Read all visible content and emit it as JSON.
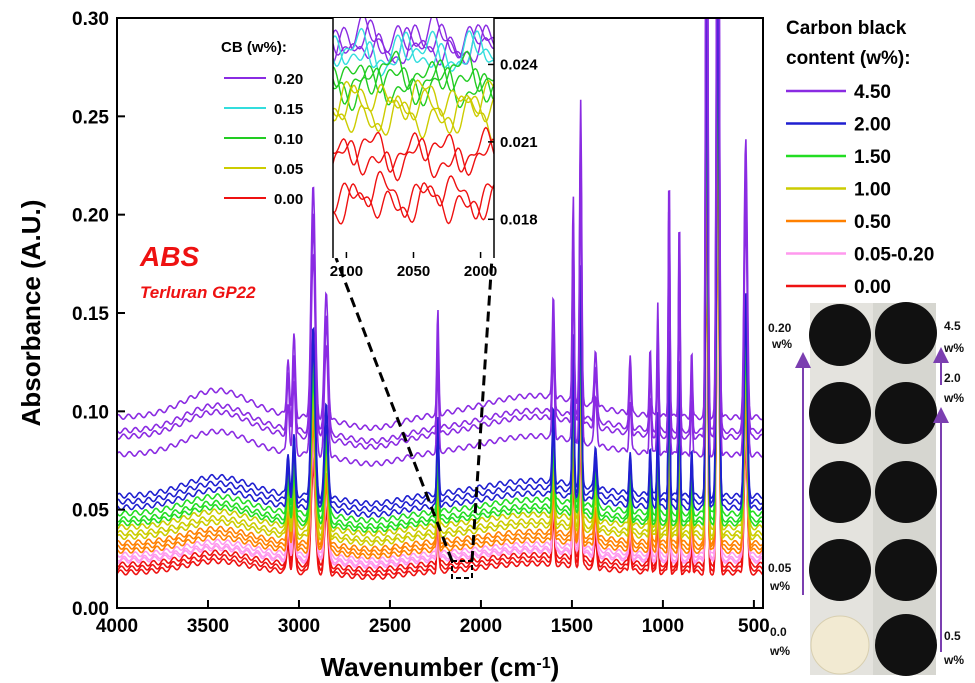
{
  "chart_data": {
    "type": "line",
    "xlabel": "Wavenumber (cm",
    "xlabel_sup": "-1",
    "xlabel_close": ")",
    "ylabel": "Absorbance (A.U.)",
    "xlim": [
      4000,
      450
    ],
    "ylim": [
      0,
      0.3
    ],
    "x_ticks": [
      4000,
      3500,
      3000,
      2500,
      2000,
      1500,
      1000,
      500
    ],
    "y_ticks": [
      "0.00",
      "0.05",
      "0.10",
      "0.15",
      "0.20",
      "0.25",
      "0.30"
    ],
    "y_tick_values": [
      0,
      0.05,
      0.1,
      0.15,
      0.2,
      0.25,
      0.3
    ],
    "annotation_title": "ABS",
    "annotation_subtitle": "Terluran GP22",
    "legend": {
      "title_line1": "Carbon black",
      "title_line2": "content (w%):",
      "entries": [
        {
          "label": "4.50",
          "color": "#8a2be2"
        },
        {
          "label": "2.00",
          "color": "#1f1fd0"
        },
        {
          "label": "1.50",
          "color": "#22dd22"
        },
        {
          "label": "1.00",
          "color": "#cccc00"
        },
        {
          "label": "0.50",
          "color": "#ff8000"
        },
        {
          "label": "0.05-0.20",
          "color": "#ff99ee"
        },
        {
          "label": "0.00",
          "color": "#ee1111"
        }
      ]
    },
    "series": [
      {
        "name": "4.50",
        "color": "#8a2be2",
        "baselines": [
          0.097,
          0.09,
          0.087,
          0.078
        ]
      },
      {
        "name": "2.00",
        "color": "#1f1fd0",
        "baselines": [
          0.057,
          0.054,
          0.051
        ]
      },
      {
        "name": "1.50",
        "color": "#22dd22",
        "baselines": [
          0.048,
          0.045,
          0.043
        ]
      },
      {
        "name": "1.00",
        "color": "#cccc00",
        "baselines": [
          0.041,
          0.038,
          0.036
        ]
      },
      {
        "name": "0.50",
        "color": "#ff8000",
        "baselines": [
          0.033,
          0.031,
          0.029
        ]
      },
      {
        "name": "0.05-0.20",
        "color": "#ff99ee",
        "baselines": [
          0.027,
          0.025,
          0.024
        ]
      },
      {
        "name": "0.00",
        "color": "#ee1111",
        "baselines": [
          0.022,
          0.02,
          0.018
        ]
      }
    ],
    "peaks": [
      {
        "x": 3060,
        "h": 0.25,
        "w": 10
      },
      {
        "x": 3027,
        "h": 0.35,
        "w": 10
      },
      {
        "x": 2922,
        "h": 1.0,
        "w": 16
      },
      {
        "x": 2850,
        "h": 0.55,
        "w": 14
      },
      {
        "x": 2237,
        "h": 0.45,
        "w": 7
      },
      {
        "x": 1602,
        "h": 0.45,
        "w": 8
      },
      {
        "x": 1493,
        "h": 0.9,
        "w": 7
      },
      {
        "x": 1452,
        "h": 1.3,
        "w": 8
      },
      {
        "x": 1370,
        "h": 0.25,
        "w": 10
      },
      {
        "x": 1180,
        "h": 0.25,
        "w": 8
      },
      {
        "x": 1070,
        "h": 0.3,
        "w": 7
      },
      {
        "x": 1028,
        "h": 0.5,
        "w": 6
      },
      {
        "x": 966,
        "h": 1.1,
        "w": 6
      },
      {
        "x": 910,
        "h": 0.9,
        "w": 6
      },
      {
        "x": 842,
        "h": 0.3,
        "w": 6
      },
      {
        "x": 759,
        "h": 3.5,
        "w": 8
      },
      {
        "x": 698,
        "h": 3.5,
        "w": 10
      },
      {
        "x": 545,
        "h": 1.2,
        "w": 12
      }
    ],
    "inset": {
      "legend_title": "CB (w%):",
      "entries": [
        {
          "label": "0.20",
          "color": "#8a2be2"
        },
        {
          "label": "0.15",
          "color": "#33dddd"
        },
        {
          "label": "0.10",
          "color": "#22cc22"
        },
        {
          "label": "0.05",
          "color": "#cccc00"
        },
        {
          "label": "0.00",
          "color": "#ee1111"
        }
      ],
      "x_ticks": [
        "2100",
        "2050",
        "2000"
      ],
      "x_tick_values": [
        2100,
        2050,
        2000
      ],
      "xlim": [
        2110,
        1990
      ],
      "y_ticks": [
        "0.024",
        "0.021",
        "0.018"
      ],
      "y_tick_values": [
        0.024,
        0.021,
        0.018
      ],
      "ylim": [
        0.0165,
        0.0258
      ],
      "series_levels": {
        "0.20": [
          0.025,
          0.0248,
          0.0246
        ],
        "0.15": [
          0.0245,
          0.0243
        ],
        "0.10": [
          0.0237,
          0.0234,
          0.0231
        ],
        "0.05": [
          0.0227,
          0.0223,
          0.0219
        ],
        "0.00": [
          0.0207,
          0.0203,
          0.019,
          0.0186
        ]
      }
    }
  },
  "photo": {
    "left_labels": [
      {
        "value": "0.20",
        "unit": "w%"
      },
      {
        "value": "0.05",
        "unit": "w%"
      },
      {
        "value": "0.0",
        "unit": "w%"
      }
    ],
    "right_labels": [
      {
        "value": "4.5",
        "unit": "w%"
      },
      {
        "value": "2.0",
        "unit": "w%"
      },
      {
        "value": "0.5",
        "unit": "w%"
      }
    ],
    "arrow_color": "#7b3fb0"
  }
}
